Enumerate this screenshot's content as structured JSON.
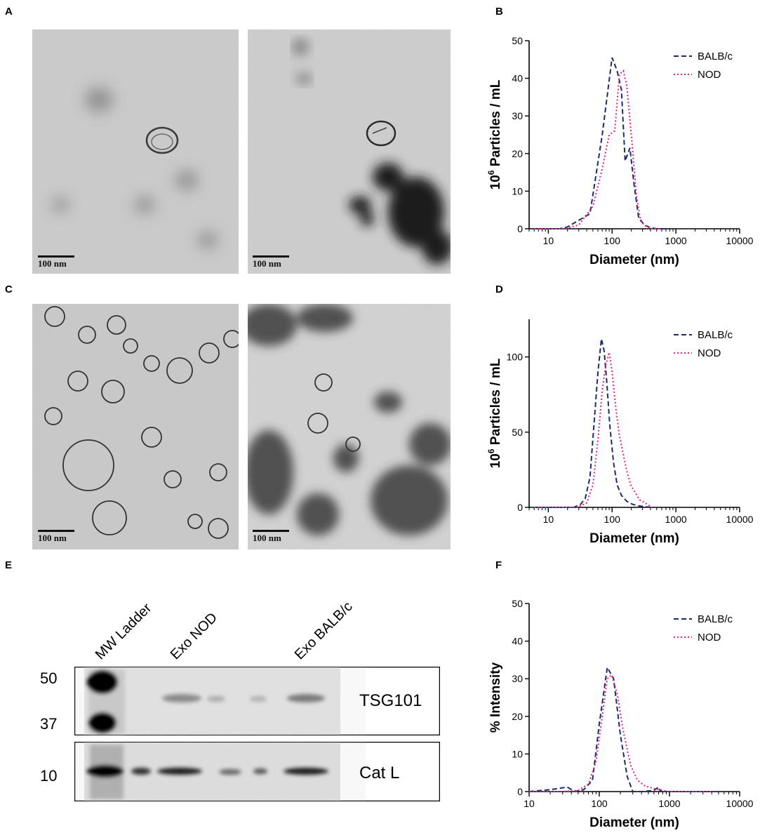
{
  "panels": {
    "A": "A",
    "B": "B",
    "C": "C",
    "D": "D",
    "E": "E",
    "F": "F"
  },
  "micrographs": {
    "scale_label": "100 nm"
  },
  "chart_data": [
    {
      "panel": "B",
      "type": "line",
      "xlabel": "Diameter (nm)",
      "ylabel_base": "10",
      "ylabel_exp": "6",
      "ylabel_rest": " Particles / mL",
      "xscale": "log",
      "xlim": [
        5,
        10000
      ],
      "ylim": [
        0,
        50
      ],
      "xticks": [
        10,
        100,
        1000,
        10000
      ],
      "xtick_labels": [
        "10",
        "100",
        "1000",
        "10000"
      ],
      "yticks": [
        0,
        10,
        20,
        30,
        40,
        50
      ],
      "ytick_labels": [
        "0",
        "10",
        "20",
        "30",
        "40",
        "50"
      ],
      "legend": "top-right",
      "series": [
        {
          "name": "BALB/c",
          "color": "#1f2a6e",
          "style": "dash",
          "x": [
            6,
            15,
            20,
            45,
            70,
            100,
            120,
            140,
            160,
            190,
            220,
            260,
            320,
            400,
            500,
            700
          ],
          "y": [
            0,
            0,
            0.5,
            4,
            25,
            45.5,
            42,
            37,
            18,
            21.5,
            12,
            3,
            1,
            0.3,
            0,
            0
          ]
        },
        {
          "name": "NOD",
          "color": "#e8217a",
          "style": "dot",
          "x": [
            6,
            18,
            30,
            50,
            70,
            90,
            110,
            130,
            150,
            170,
            200,
            240,
            280,
            330,
            420,
            600
          ],
          "y": [
            0,
            0,
            1,
            6,
            16,
            25,
            26,
            41,
            42,
            38,
            25,
            9,
            2,
            0.8,
            0,
            0
          ]
        }
      ]
    },
    {
      "panel": "D",
      "type": "line",
      "xlabel": "Diameter (nm)",
      "ylabel_base": "10",
      "ylabel_exp": "6",
      "ylabel_rest": " Particles / mL",
      "xscale": "log",
      "xlim": [
        5,
        10000
      ],
      "ylim": [
        0,
        125
      ],
      "xticks": [
        10,
        100,
        1000,
        10000
      ],
      "xtick_labels": [
        "10",
        "100",
        "1000",
        "10000"
      ],
      "yticks": [
        0,
        50,
        100
      ],
      "ytick_labels": [
        "0",
        "50",
        "100"
      ],
      "legend": "top-right",
      "series": [
        {
          "name": "BALB/c",
          "color": "#1f2a6e",
          "style": "dash",
          "x": [
            6,
            25,
            32,
            38,
            45,
            52,
            60,
            68,
            75,
            82,
            92,
            105,
            120,
            140,
            170,
            210,
            260,
            320,
            400
          ],
          "y": [
            0,
            0,
            2,
            6,
            20,
            55,
            90,
            112,
            104,
            85,
            55,
            30,
            15,
            8,
            4,
            2,
            1,
            0.5,
            0
          ]
        },
        {
          "name": "NOD",
          "color": "#e8217a",
          "style": "dot",
          "x": [
            6,
            28,
            40,
            50,
            60,
            70,
            80,
            90,
            100,
            115,
            130,
            150,
            175,
            200,
            230,
            270,
            330,
            420
          ],
          "y": [
            0,
            0,
            3,
            15,
            45,
            78,
            95,
            103,
            90,
            65,
            48,
            35,
            22,
            14,
            10,
            5,
            3,
            0
          ]
        }
      ]
    },
    {
      "panel": "F",
      "type": "line",
      "xlabel": "Diameter (nm)",
      "ylabel": "% Intensity",
      "xscale": "log",
      "xlim": [
        10,
        10000
      ],
      "ylim": [
        0,
        50
      ],
      "xticks": [
        10,
        100,
        1000,
        10000
      ],
      "xtick_labels": [
        "10",
        "100",
        "1000",
        "10000"
      ],
      "yticks": [
        0,
        10,
        20,
        30,
        40,
        50
      ],
      "ytick_labels": [
        "0",
        "10",
        "20",
        "30",
        "40",
        "50"
      ],
      "legend": "top-right",
      "series": [
        {
          "name": "BALB/c",
          "color": "#1f2a6e",
          "style": "dash",
          "x": [
            10,
            20,
            35,
            45,
            60,
            80,
            100,
            130,
            160,
            200,
            250,
            300,
            400,
            600,
            700,
            750,
            800,
            1000,
            4000
          ],
          "y": [
            0,
            0.5,
            1.2,
            0,
            0.5,
            3,
            18,
            33,
            30,
            15,
            4,
            0,
            0,
            0.3,
            1.2,
            0,
            0,
            0,
            0
          ]
        },
        {
          "name": "NOD",
          "color": "#e8217a",
          "style": "dot",
          "x": [
            10,
            30,
            50,
            70,
            90,
            110,
            130,
            150,
            180,
            220,
            280,
            350,
            450,
            600,
            800,
            1000,
            4000
          ],
          "y": [
            0,
            0,
            0.3,
            2,
            8,
            20,
            30,
            31,
            26,
            16,
            7,
            3,
            1.5,
            0.8,
            0.3,
            0,
            0
          ]
        }
      ]
    }
  ],
  "western_blot": {
    "lanes": [
      "MW Ladder",
      "Exo NOD",
      "Exo BALB/c"
    ],
    "mw_markers": [
      "50",
      "37",
      "10"
    ],
    "bands": [
      "TSG101",
      "Cat L"
    ]
  }
}
